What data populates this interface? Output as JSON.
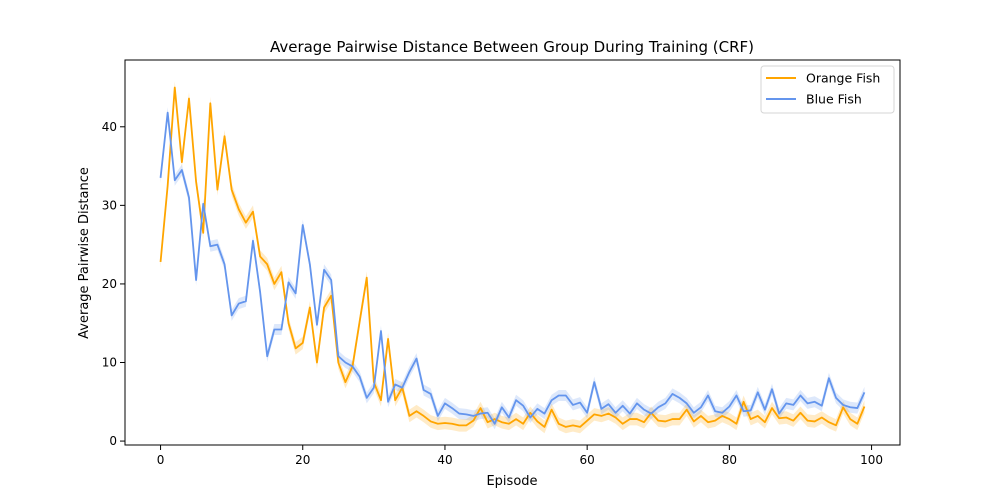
{
  "chart_data": {
    "type": "line",
    "title": "Average Pairwise Distance Between Group During Training (CRF)",
    "xlabel": "Episode",
    "ylabel": "Average Pairwise Distance",
    "xlim": [
      -5,
      104
    ],
    "ylim": [
      -0.5,
      48.5
    ],
    "xticks": [
      0,
      20,
      40,
      60,
      80,
      100
    ],
    "yticks": [
      0,
      10,
      20,
      30,
      40
    ],
    "grid": false,
    "legend": "top-right",
    "x": [
      0,
      1,
      2,
      3,
      4,
      5,
      6,
      7,
      8,
      9,
      10,
      11,
      12,
      13,
      14,
      15,
      16,
      17,
      18,
      19,
      20,
      21,
      22,
      23,
      24,
      25,
      26,
      27,
      28,
      29,
      30,
      31,
      32,
      33,
      34,
      35,
      36,
      37,
      38,
      39,
      40,
      41,
      42,
      43,
      44,
      45,
      46,
      47,
      48,
      49,
      50,
      51,
      52,
      53,
      54,
      55,
      56,
      57,
      58,
      59,
      60,
      61,
      62,
      63,
      64,
      65,
      66,
      67,
      68,
      69,
      70,
      71,
      72,
      73,
      74,
      75,
      76,
      77,
      78,
      79,
      80,
      81,
      82,
      83,
      84,
      85,
      86,
      87,
      88,
      89,
      90,
      91,
      92,
      93,
      94,
      95,
      96,
      97,
      98,
      99
    ],
    "series": [
      {
        "name": "Orange Fish",
        "color": "#FFA500",
        "band": 0.8,
        "values": [
          22.8,
          32.5,
          45.0,
          35.5,
          43.6,
          33.0,
          26.5,
          43.0,
          32.0,
          38.8,
          32.0,
          29.5,
          27.8,
          29.2,
          23.5,
          22.5,
          20.0,
          21.5,
          15.0,
          11.8,
          12.5,
          17.0,
          10.0,
          17.0,
          18.5,
          10.0,
          7.5,
          9.5,
          15.2,
          20.8,
          7.5,
          5.2,
          13.0,
          5.2,
          6.8,
          3.2,
          3.8,
          3.2,
          2.5,
          2.2,
          2.3,
          2.2,
          2.0,
          2.0,
          2.6,
          4.2,
          2.4,
          2.8,
          2.4,
          2.2,
          2.8,
          2.2,
          3.6,
          2.5,
          1.8,
          4.0,
          2.2,
          1.8,
          2.0,
          1.8,
          2.6,
          3.4,
          3.2,
          3.5,
          3.0,
          2.2,
          2.8,
          2.8,
          2.4,
          3.6,
          2.6,
          2.5,
          2.8,
          2.8,
          4.0,
          2.5,
          3.2,
          2.4,
          2.6,
          3.2,
          2.8,
          2.2,
          5.0,
          2.8,
          3.2,
          2.4,
          4.2,
          2.9,
          3.0,
          2.6,
          3.6,
          2.6,
          2.5,
          3.0,
          2.4,
          2.0,
          4.3,
          2.8,
          2.2,
          4.4
        ]
      },
      {
        "name": "Blue Fish",
        "color": "#6495ED",
        "band": 0.7,
        "values": [
          33.5,
          41.8,
          33.2,
          34.5,
          31.0,
          20.5,
          30.2,
          24.8,
          25.0,
          22.5,
          16.0,
          17.5,
          17.8,
          25.5,
          19.0,
          10.8,
          14.2,
          14.2,
          20.2,
          18.8,
          27.5,
          22.5,
          14.8,
          21.8,
          20.5,
          10.8,
          10.0,
          9.5,
          8.2,
          5.5,
          6.8,
          14.0,
          5.0,
          7.2,
          6.8,
          8.8,
          10.5,
          6.5,
          6.0,
          3.2,
          4.8,
          4.2,
          3.5,
          3.4,
          3.2,
          3.5,
          3.6,
          2.2,
          4.3,
          3.0,
          5.2,
          4.5,
          3.0,
          4.1,
          3.5,
          5.2,
          5.8,
          5.8,
          4.6,
          4.9,
          3.6,
          7.5,
          4.1,
          4.7,
          3.6,
          4.5,
          3.5,
          4.8,
          4.0,
          3.5,
          4.3,
          4.8,
          6.0,
          5.5,
          4.8,
          3.6,
          4.3,
          5.8,
          3.8,
          3.6,
          4.4,
          5.8,
          3.8,
          3.9,
          6.2,
          4.0,
          6.6,
          3.5,
          4.8,
          4.6,
          5.8,
          4.8,
          5.0,
          4.5,
          8.0,
          5.5,
          4.6,
          4.3,
          4.2,
          6.2
        ]
      }
    ]
  }
}
